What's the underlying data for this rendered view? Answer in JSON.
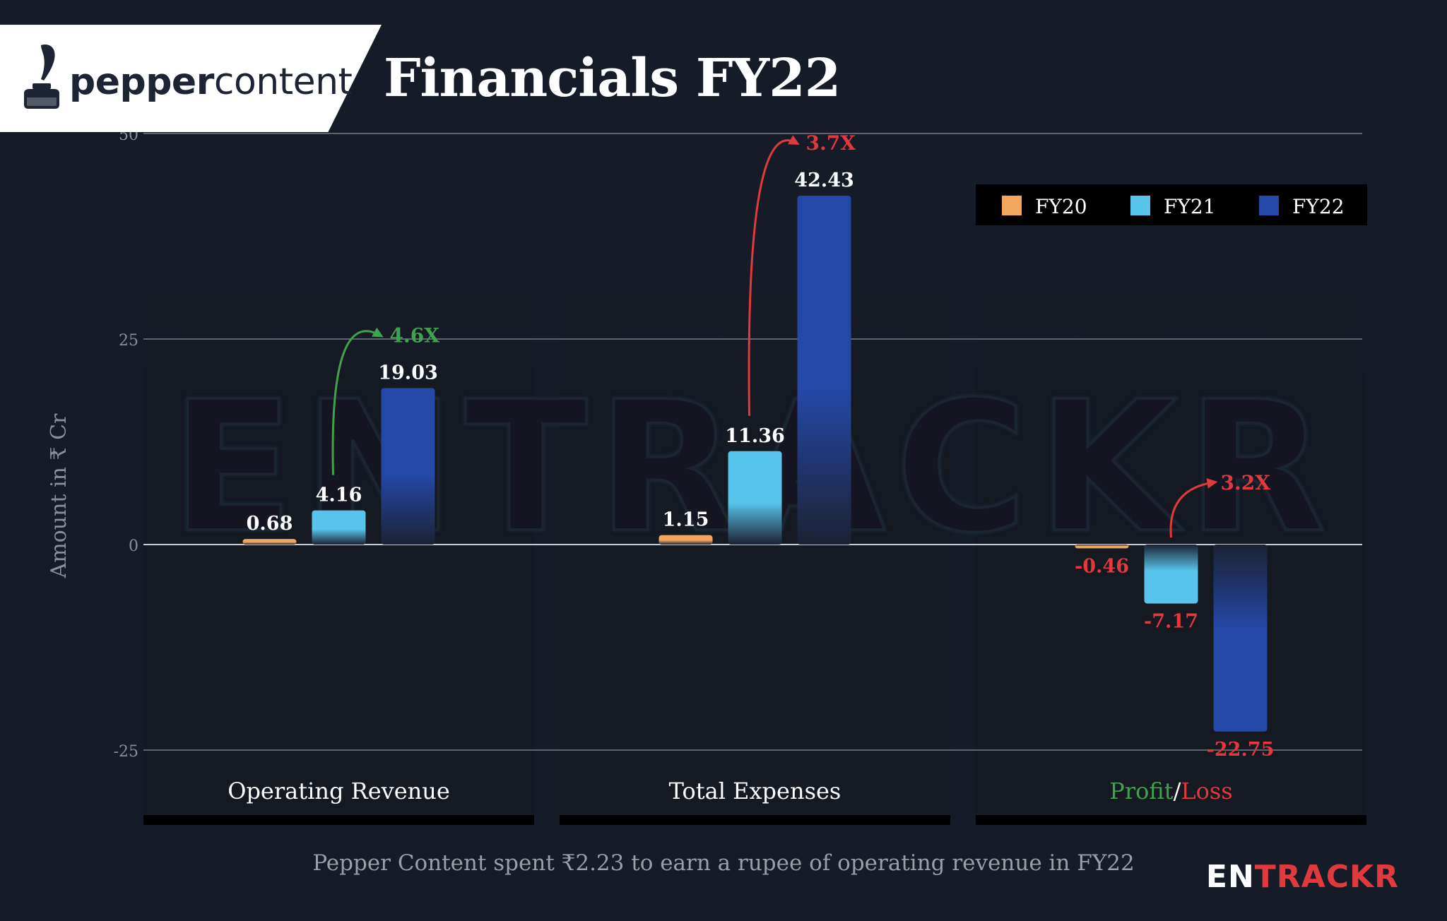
{
  "header": {
    "logo_bold": "pepper",
    "logo_light": "content",
    "title": "Financials FY22"
  },
  "footer": {
    "note": "Pepper Content spent ₹2.23 to earn a rupee of operating revenue in FY22",
    "brand_white": "EN",
    "brand_red": "TRACKR"
  },
  "watermark": "ENTRACKR",
  "colors": {
    "background": "#161c27",
    "panel": "#141a24",
    "FY20": "#f2a65e",
    "FY21": "#58c4ec",
    "FY22": "#2448a8",
    "positive": "#3fa34d",
    "negative": "#e0393e"
  },
  "chart_data": {
    "type": "bar",
    "ylabel": "Amount in ₹ Cr",
    "ylim": [
      -25,
      50
    ],
    "yticks": [
      50,
      25,
      0,
      -25
    ],
    "grid": true,
    "legend_position": "top-right",
    "categories": [
      "Operating Revenue",
      "Total Expenses",
      "Profit/Loss"
    ],
    "category_parts": [
      [
        {
          "text": "Operating Revenue",
          "color": "#ffffff"
        }
      ],
      [
        {
          "text": "Total Expenses",
          "color": "#ffffff"
        }
      ],
      [
        {
          "text": "Profit",
          "color": "#3fa34d"
        },
        {
          "text": "/",
          "color": "#ffffff"
        },
        {
          "text": "Loss",
          "color": "#e0393e"
        }
      ]
    ],
    "series": [
      {
        "name": "FY20",
        "values": [
          0.68,
          1.15,
          -0.46
        ],
        "labels": [
          "0.68",
          "1.15",
          "-0.46"
        ]
      },
      {
        "name": "FY21",
        "values": [
          4.16,
          11.36,
          -7.17
        ],
        "labels": [
          "4.16",
          "11.36",
          "-7.17"
        ]
      },
      {
        "name": "FY22",
        "values": [
          19.03,
          42.43,
          -22.75
        ],
        "labels": [
          "19.03",
          "42.43",
          "-22.75"
        ]
      }
    ],
    "annotations": [
      {
        "category": "Operating Revenue",
        "from": "FY21",
        "to": "FY22",
        "text": "4.6X",
        "color": "#3fa34d"
      },
      {
        "category": "Total Expenses",
        "from": "FY21",
        "to": "FY22",
        "text": "3.7X",
        "color": "#e0393e"
      },
      {
        "category": "Profit/Loss",
        "from": "FY21",
        "to": "FY22",
        "text": "3.2X",
        "color": "#e0393e"
      }
    ]
  }
}
